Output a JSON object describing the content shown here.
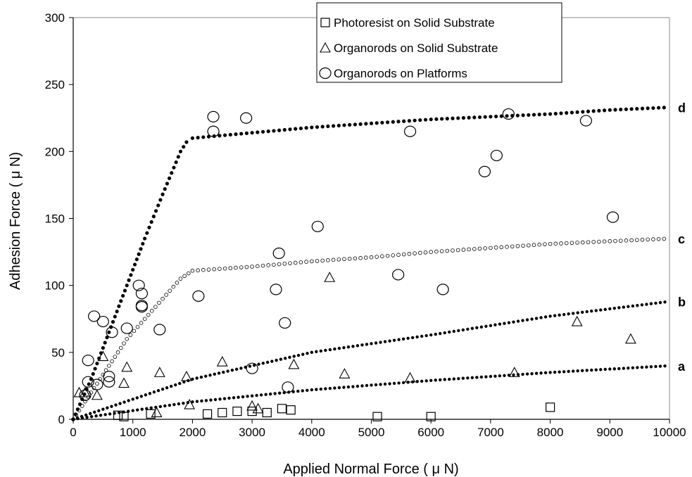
{
  "chart_data": {
    "type": "scatter",
    "xlabel": "Applied Normal Force ( μ N)",
    "ylabel": "Adhesion Force ( μ N)",
    "xlim": [
      0,
      10000
    ],
    "ylim": [
      0,
      300
    ],
    "x_ticks": [
      0,
      1000,
      2000,
      3000,
      4000,
      5000,
      6000,
      7000,
      8000,
      9000,
      10000
    ],
    "y_ticks": [
      0,
      50,
      100,
      150,
      200,
      250,
      300
    ],
    "grid": false,
    "legend_position": "top-center",
    "series": [
      {
        "name": "Photoresist on Solid Substrate",
        "marker": "square",
        "points": [
          [
            750,
            3
          ],
          [
            850,
            2
          ],
          [
            1300,
            4
          ],
          [
            2250,
            4
          ],
          [
            2500,
            5
          ],
          [
            2750,
            6
          ],
          [
            3000,
            6
          ],
          [
            3250,
            5
          ],
          [
            3500,
            8
          ],
          [
            3650,
            7
          ],
          [
            5100,
            2
          ],
          [
            6000,
            2
          ],
          [
            8000,
            9
          ]
        ]
      },
      {
        "name": "Organorods on Solid Substrate",
        "marker": "triangle",
        "points": [
          [
            100,
            20
          ],
          [
            200,
            20
          ],
          [
            400,
            18
          ],
          [
            500,
            47
          ],
          [
            850,
            27
          ],
          [
            900,
            39
          ],
          [
            1400,
            5
          ],
          [
            1450,
            35
          ],
          [
            1900,
            32
          ],
          [
            1950,
            11
          ],
          [
            2500,
            43
          ],
          [
            3000,
            10
          ],
          [
            3100,
            8
          ],
          [
            3700,
            41
          ],
          [
            4300,
            106
          ],
          [
            4550,
            34
          ],
          [
            5650,
            31
          ],
          [
            7400,
            35
          ],
          [
            8450,
            73
          ],
          [
            9350,
            60
          ]
        ]
      },
      {
        "name": "Organorods on Platforms",
        "marker": "circle",
        "points": [
          [
            200,
            18
          ],
          [
            250,
            28
          ],
          [
            250,
            44
          ],
          [
            350,
            77
          ],
          [
            400,
            26
          ],
          [
            500,
            73
          ],
          [
            600,
            32
          ],
          [
            600,
            28
          ],
          [
            650,
            65
          ],
          [
            900,
            68
          ],
          [
            1100,
            100
          ],
          [
            1150,
            94
          ],
          [
            1150,
            84
          ],
          [
            1150,
            85
          ],
          [
            1450,
            67
          ],
          [
            2100,
            92
          ],
          [
            2350,
            226
          ],
          [
            2350,
            215
          ],
          [
            2900,
            225
          ],
          [
            3000,
            38
          ],
          [
            3400,
            97
          ],
          [
            3450,
            124
          ],
          [
            3550,
            72
          ],
          [
            3600,
            24
          ],
          [
            4100,
            144
          ],
          [
            5450,
            108
          ],
          [
            5650,
            215
          ],
          [
            6200,
            97
          ],
          [
            6900,
            185
          ],
          [
            7100,
            197
          ],
          [
            7300,
            228
          ],
          [
            8600,
            223
          ],
          [
            9050,
            151
          ]
        ]
      }
    ],
    "trend_lines": [
      {
        "label": "a",
        "points": [
          [
            0,
            0
          ],
          [
            2000,
            13
          ],
          [
            4000,
            22
          ],
          [
            6000,
            29
          ],
          [
            8000,
            35
          ],
          [
            10000,
            40
          ]
        ]
      },
      {
        "label": "b",
        "points": [
          [
            0,
            0
          ],
          [
            1000,
            15
          ],
          [
            2000,
            30
          ],
          [
            4000,
            50
          ],
          [
            6000,
            63
          ],
          [
            8000,
            77
          ],
          [
            10000,
            88
          ]
        ]
      },
      {
        "label": "c",
        "points": [
          [
            0,
            0
          ],
          [
            300,
            20
          ],
          [
            600,
            40
          ],
          [
            900,
            60
          ],
          [
            1200,
            75
          ],
          [
            1500,
            90
          ],
          [
            1800,
            105
          ],
          [
            2000,
            111
          ],
          [
            3000,
            114
          ],
          [
            4000,
            118
          ],
          [
            5000,
            121
          ],
          [
            6000,
            125
          ],
          [
            7000,
            128
          ],
          [
            8000,
            131
          ],
          [
            9000,
            133
          ],
          [
            10000,
            135
          ]
        ]
      },
      {
        "label": "d",
        "points": [
          [
            0,
            0
          ],
          [
            300,
            30
          ],
          [
            600,
            65
          ],
          [
            900,
            100
          ],
          [
            1200,
            135
          ],
          [
            1500,
            168
          ],
          [
            1800,
            200
          ],
          [
            1900,
            207
          ],
          [
            2000,
            210
          ],
          [
            3000,
            214
          ],
          [
            4000,
            218
          ],
          [
            5000,
            221
          ],
          [
            6000,
            224
          ],
          [
            7000,
            226
          ],
          [
            8000,
            228
          ],
          [
            9000,
            231
          ],
          [
            10000,
            233
          ]
        ]
      }
    ]
  }
}
